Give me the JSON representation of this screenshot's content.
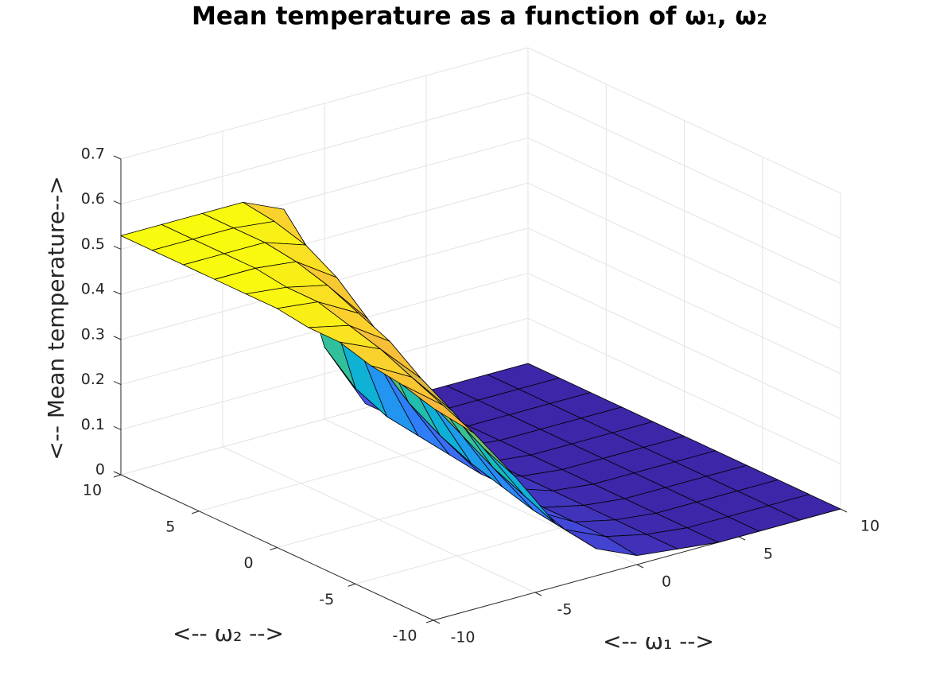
{
  "chart_data": {
    "type": "surface",
    "title": "Mean temperature as a function of ω₁, ω₂",
    "xlabel": "<-- ω₁ -->",
    "ylabel": "<-- ω₂ -->",
    "zlabel": "<-- Mean temperature-->",
    "x": [
      -10,
      -8,
      -6,
      -4,
      -2,
      0,
      2,
      4,
      6,
      8,
      10
    ],
    "y": [
      -10,
      -8,
      -6,
      -4,
      -2,
      0,
      2,
      4,
      6,
      8,
      10
    ],
    "z": [
      [
        0.47,
        0.39,
        0.27,
        0.14,
        0.06,
        0.02,
        0.01,
        0,
        0,
        0,
        0
      ],
      [
        0.49,
        0.42,
        0.3,
        0.17,
        0.07,
        0.03,
        0.01,
        0,
        0,
        0,
        0
      ],
      [
        0.5,
        0.45,
        0.35,
        0.2,
        0.08,
        0.03,
        0.01,
        0,
        0,
        0,
        0
      ],
      [
        0.52,
        0.48,
        0.39,
        0.24,
        0.1,
        0.03,
        0.01,
        0,
        0,
        0,
        0
      ],
      [
        0.52,
        0.5,
        0.44,
        0.28,
        0.12,
        0.04,
        0.01,
        0,
        0,
        0,
        0
      ],
      [
        0.53,
        0.52,
        0.47,
        0.34,
        0.15,
        0.04,
        0.01,
        0,
        0,
        0,
        0
      ],
      [
        0.53,
        0.52,
        0.5,
        0.4,
        0.19,
        0.05,
        0.01,
        0,
        0,
        0,
        0
      ],
      [
        0.53,
        0.53,
        0.52,
        0.46,
        0.25,
        0.06,
        0.01,
        0,
        0,
        0,
        0
      ],
      [
        0.53,
        0.53,
        0.53,
        0.5,
        0.32,
        0.07,
        0.01,
        0,
        0,
        0,
        0
      ],
      [
        0.53,
        0.53,
        0.53,
        0.52,
        0.41,
        0.1,
        0.01,
        0,
        0,
        0,
        0
      ],
      [
        0.53,
        0.53,
        0.53,
        0.53,
        0.49,
        0.16,
        0.01,
        0,
        0,
        0,
        0
      ]
    ],
    "xlim": [
      -10,
      10
    ],
    "ylim": [
      -10,
      10
    ],
    "zlim": [
      0,
      0.7
    ],
    "xticks": [
      -10,
      -5,
      0,
      5,
      10
    ],
    "yticks": [
      -10,
      -5,
      0,
      5,
      10
    ],
    "zticks": [
      0,
      0.1,
      0.2,
      0.3,
      0.4,
      0.5,
      0.6,
      0.7
    ],
    "grid": true,
    "colormap": "parula"
  }
}
